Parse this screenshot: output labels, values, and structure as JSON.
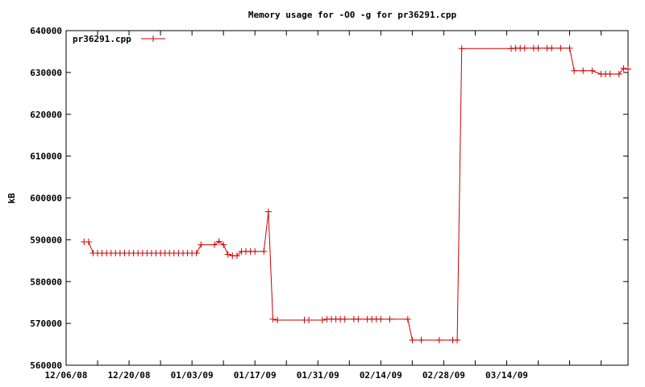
{
  "chart_data": {
    "type": "line",
    "title": "Memory usage for -O0 -g for pr36291.cpp",
    "xlabel": "",
    "ylabel": "kB",
    "ylim": [
      560000,
      640000
    ],
    "yticks": [
      "560000",
      "570000",
      "580000",
      "590000",
      "600000",
      "610000",
      "620000",
      "630000",
      "640000"
    ],
    "xlim": [
      "2008-12-06",
      "2009-04-10"
    ],
    "xticks": [
      "12/06/08",
      "12/20/08",
      "01/03/09",
      "01/17/09",
      "01/31/09",
      "02/14/09",
      "02/28/09",
      "03/14/09"
    ],
    "grid": false,
    "legend_position": "top-left",
    "colors": {
      "series": "#cc0000",
      "axis": "#000000"
    },
    "series": [
      {
        "name": "pr36291.cpp",
        "points": [
          [
            "2008-12-10",
            589500
          ],
          [
            "2008-12-11",
            589500
          ],
          [
            "2008-12-12",
            586800
          ],
          [
            "2008-12-13",
            586800
          ],
          [
            "2008-12-14",
            586800
          ],
          [
            "2008-12-15",
            586800
          ],
          [
            "2008-12-16",
            586800
          ],
          [
            "2008-12-17",
            586800
          ],
          [
            "2008-12-18",
            586800
          ],
          [
            "2008-12-19",
            586800
          ],
          [
            "2008-12-20",
            586800
          ],
          [
            "2008-12-21",
            586800
          ],
          [
            "2008-12-22",
            586800
          ],
          [
            "2008-12-23",
            586800
          ],
          [
            "2008-12-24",
            586800
          ],
          [
            "2008-12-25",
            586800
          ],
          [
            "2008-12-26",
            586800
          ],
          [
            "2008-12-27",
            586800
          ],
          [
            "2008-12-28",
            586800
          ],
          [
            "2008-12-29",
            586800
          ],
          [
            "2008-12-30",
            586800
          ],
          [
            "2008-12-31",
            586800
          ],
          [
            "2009-01-01",
            586800
          ],
          [
            "2009-01-02",
            586800
          ],
          [
            "2009-01-03",
            586800
          ],
          [
            "2009-01-04",
            586800
          ],
          [
            "2009-01-05",
            588800
          ],
          [
            "2009-01-08",
            588800
          ],
          [
            "2009-01-09",
            589600
          ],
          [
            "2009-01-10",
            588800
          ],
          [
            "2009-01-11",
            586500
          ],
          [
            "2009-01-12",
            586200
          ],
          [
            "2009-01-13",
            586200
          ],
          [
            "2009-01-14",
            587200
          ],
          [
            "2009-01-15",
            587200
          ],
          [
            "2009-01-16",
            587200
          ],
          [
            "2009-01-17",
            587200
          ],
          [
            "2009-01-19",
            587200
          ],
          [
            "2009-01-20",
            596700
          ],
          [
            "2009-01-21",
            571000
          ],
          [
            "2009-01-22",
            570800
          ],
          [
            "2009-01-28",
            570800
          ],
          [
            "2009-01-29",
            570800
          ],
          [
            "2009-02-01",
            570800
          ],
          [
            "2009-02-02",
            571000
          ],
          [
            "2009-02-03",
            571000
          ],
          [
            "2009-02-04",
            571000
          ],
          [
            "2009-02-05",
            571000
          ],
          [
            "2009-02-06",
            571000
          ],
          [
            "2009-02-08",
            571000
          ],
          [
            "2009-02-09",
            571000
          ],
          [
            "2009-02-11",
            571000
          ],
          [
            "2009-02-12",
            571000
          ],
          [
            "2009-02-13",
            571000
          ],
          [
            "2009-02-14",
            571000
          ],
          [
            "2009-02-16",
            571000
          ],
          [
            "2009-02-20",
            571000
          ],
          [
            "2009-02-21",
            566000
          ],
          [
            "2009-02-23",
            566000
          ],
          [
            "2009-02-27",
            566000
          ],
          [
            "2009-03-02",
            566000
          ],
          [
            "2009-03-03",
            566000
          ],
          [
            "2009-03-04",
            635700
          ],
          [
            "2009-03-15",
            635700
          ],
          [
            "2009-03-16",
            635800
          ],
          [
            "2009-03-17",
            635800
          ],
          [
            "2009-03-18",
            635800
          ],
          [
            "2009-03-20",
            635800
          ],
          [
            "2009-03-21",
            635800
          ],
          [
            "2009-03-23",
            635800
          ],
          [
            "2009-03-24",
            635800
          ],
          [
            "2009-03-26",
            635800
          ],
          [
            "2009-03-28",
            635800
          ],
          [
            "2009-03-29",
            630400
          ],
          [
            "2009-03-31",
            630400
          ],
          [
            "2009-04-02",
            630400
          ],
          [
            "2009-04-04",
            629600
          ],
          [
            "2009-04-05",
            629600
          ],
          [
            "2009-04-06",
            629600
          ],
          [
            "2009-04-08",
            629600
          ],
          [
            "2009-04-09",
            631000
          ],
          [
            "2009-04-10",
            630800
          ]
        ]
      }
    ]
  }
}
